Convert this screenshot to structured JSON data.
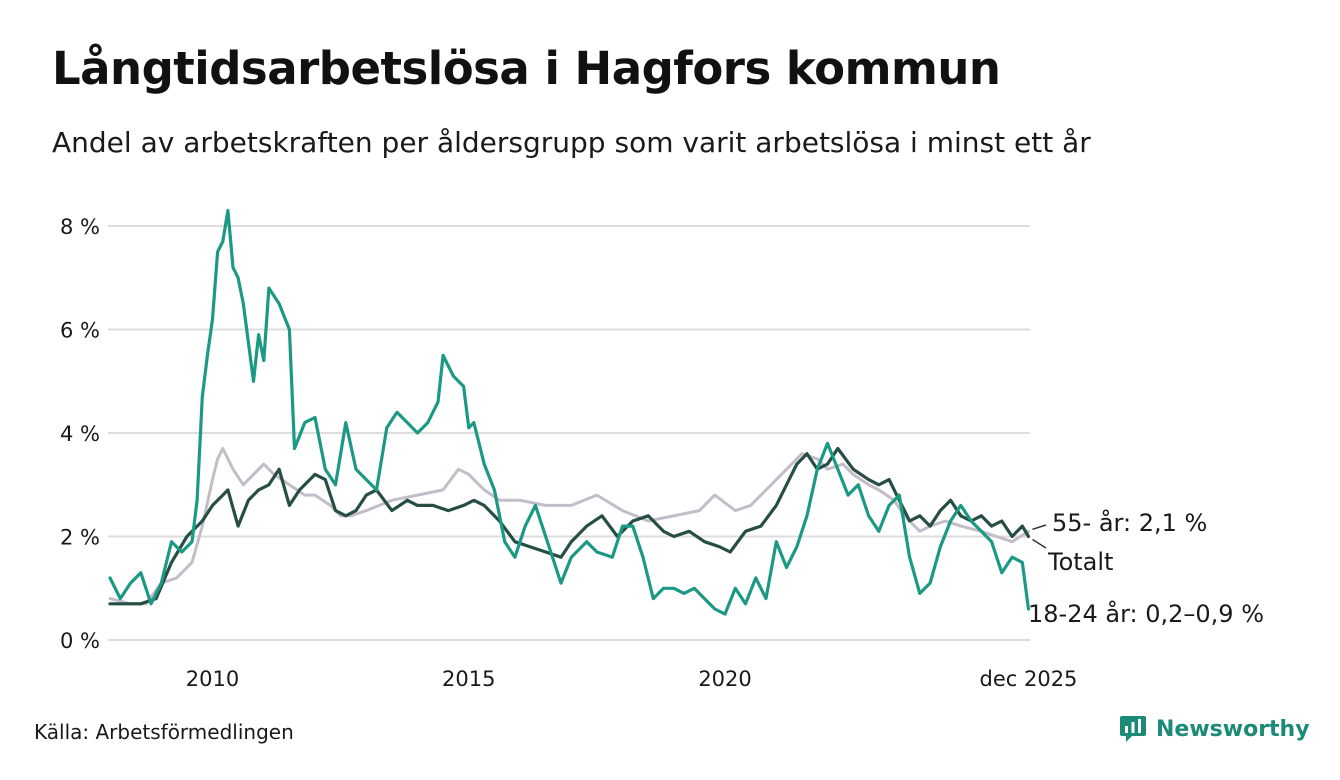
{
  "header": {
    "title": "Långtidsarbetslösa i Hagfors kommun",
    "subtitle": "Andel av arbetskraften per åldersgrupp som varit arbetslösa i minst ett år"
  },
  "footer": {
    "source": "Källa: Arbetsförmedlingen",
    "brand": "Newsworthy"
  },
  "colors": {
    "young": "#1b9985",
    "total": "#264e45",
    "older": "#c3bdc9",
    "grid": "#dddddd",
    "brand": "#1b8a77"
  },
  "chart_data": {
    "type": "line",
    "xlim": [
      2008.0,
      2025.95
    ],
    "ylim": [
      0,
      8.5
    ],
    "yticks": [
      0,
      2,
      4,
      6,
      8
    ],
    "ytick_labels": [
      "0 %",
      "2 %",
      "4 %",
      "6 %",
      "8 %"
    ],
    "xticks": [
      2010,
      2015,
      2020,
      2025.92
    ],
    "xtick_labels": [
      "2010",
      "2015",
      "2020",
      "dec 2025"
    ],
    "grid": true,
    "series": [
      {
        "name": "55- år",
        "key": "older",
        "label": "55- år: 2,1 %",
        "x": [
          2008.0,
          2008.4,
          2008.7,
          2009.0,
          2009.3,
          2009.6,
          2009.8,
          2010.0,
          2010.1,
          2010.2,
          2010.4,
          2010.6,
          2010.8,
          2011.0,
          2011.2,
          2011.5,
          2011.8,
          2012.0,
          2012.3,
          2012.5,
          2012.7,
          2013.0,
          2013.5,
          2014.0,
          2014.5,
          2014.8,
          2015.0,
          2015.3,
          2015.6,
          2016.0,
          2016.5,
          2017.0,
          2017.5,
          2018.0,
          2018.5,
          2019.0,
          2019.5,
          2019.8,
          2020.2,
          2020.5,
          2021.0,
          2021.3,
          2021.5,
          2021.8,
          2022.0,
          2022.3,
          2022.5,
          2022.8,
          2023.0,
          2023.3,
          2023.5,
          2023.8,
          2024.0,
          2024.3,
          2024.6,
          2025.0,
          2025.3,
          2025.6,
          2025.92
        ],
        "values": [
          0.8,
          0.7,
          0.7,
          1.1,
          1.2,
          1.5,
          2.2,
          3.1,
          3.5,
          3.7,
          3.3,
          3.0,
          3.2,
          3.4,
          3.2,
          3.0,
          2.8,
          2.8,
          2.6,
          2.4,
          2.4,
          2.5,
          2.7,
          2.8,
          2.9,
          3.3,
          3.2,
          2.9,
          2.7,
          2.7,
          2.6,
          2.6,
          2.8,
          2.5,
          2.3,
          2.4,
          2.5,
          2.8,
          2.5,
          2.6,
          3.1,
          3.4,
          3.6,
          3.5,
          3.3,
          3.4,
          3.2,
          3.0,
          2.9,
          2.7,
          2.4,
          2.1,
          2.2,
          2.3,
          2.2,
          2.1,
          2.0,
          1.9,
          2.1
        ]
      },
      {
        "name": "Totalt",
        "key": "total",
        "label": "Totalt",
        "x": [
          2008.0,
          2008.3,
          2008.6,
          2008.9,
          2009.2,
          2009.5,
          2009.8,
          2010.0,
          2010.2,
          2010.3,
          2010.5,
          2010.7,
          2010.9,
          2011.1,
          2011.3,
          2011.5,
          2011.7,
          2012.0,
          2012.2,
          2012.4,
          2012.6,
          2012.8,
          2013.0,
          2013.2,
          2013.5,
          2013.8,
          2014.0,
          2014.3,
          2014.6,
          2014.9,
          2015.1,
          2015.3,
          2015.6,
          2015.9,
          2016.2,
          2016.5,
          2016.8,
          2017.0,
          2017.3,
          2017.6,
          2017.9,
          2018.2,
          2018.5,
          2018.8,
          2019.0,
          2019.3,
          2019.6,
          2019.9,
          2020.1,
          2020.4,
          2020.7,
          2021.0,
          2021.2,
          2021.4,
          2021.6,
          2021.8,
          2022.0,
          2022.2,
          2022.5,
          2022.8,
          2023.0,
          2023.2,
          2023.4,
          2023.6,
          2023.8,
          2024.0,
          2024.2,
          2024.4,
          2024.6,
          2024.8,
          2025.0,
          2025.2,
          2025.4,
          2025.6,
          2025.8,
          2025.92
        ],
        "values": [
          0.7,
          0.7,
          0.7,
          0.8,
          1.5,
          2.0,
          2.3,
          2.6,
          2.8,
          2.9,
          2.2,
          2.7,
          2.9,
          3.0,
          3.3,
          2.6,
          2.9,
          3.2,
          3.1,
          2.5,
          2.4,
          2.5,
          2.8,
          2.9,
          2.5,
          2.7,
          2.6,
          2.6,
          2.5,
          2.6,
          2.7,
          2.6,
          2.3,
          1.9,
          1.8,
          1.7,
          1.6,
          1.9,
          2.2,
          2.4,
          2.0,
          2.3,
          2.4,
          2.1,
          2.0,
          2.1,
          1.9,
          1.8,
          1.7,
          2.1,
          2.2,
          2.6,
          3.0,
          3.4,
          3.6,
          3.3,
          3.4,
          3.7,
          3.3,
          3.1,
          3.0,
          3.1,
          2.7,
          2.3,
          2.4,
          2.2,
          2.5,
          2.7,
          2.4,
          2.3,
          2.4,
          2.2,
          2.3,
          2.0,
          2.2,
          2.0
        ]
      },
      {
        "name": "18-24 år",
        "key": "young",
        "label": "18-24 år: 0,2–0,9 %",
        "x": [
          2008.0,
          2008.2,
          2008.4,
          2008.6,
          2008.8,
          2009.0,
          2009.2,
          2009.4,
          2009.6,
          2009.7,
          2009.8,
          2009.9,
          2010.0,
          2010.1,
          2010.2,
          2010.3,
          2010.4,
          2010.5,
          2010.6,
          2010.8,
          2010.9,
          2011.0,
          2011.1,
          2011.3,
          2011.5,
          2011.6,
          2011.8,
          2012.0,
          2012.2,
          2012.4,
          2012.6,
          2012.8,
          2013.0,
          2013.2,
          2013.4,
          2013.6,
          2013.8,
          2014.0,
          2014.2,
          2014.4,
          2014.5,
          2014.7,
          2014.9,
          2015.0,
          2015.1,
          2015.3,
          2015.5,
          2015.7,
          2015.9,
          2016.1,
          2016.3,
          2016.6,
          2016.8,
          2017.0,
          2017.3,
          2017.5,
          2017.8,
          2018.0,
          2018.2,
          2018.4,
          2018.6,
          2018.8,
          2019.0,
          2019.2,
          2019.4,
          2019.6,
          2019.8,
          2020.0,
          2020.2,
          2020.4,
          2020.6,
          2020.8,
          2021.0,
          2021.2,
          2021.4,
          2021.6,
          2021.8,
          2022.0,
          2022.2,
          2022.4,
          2022.6,
          2022.8,
          2023.0,
          2023.2,
          2023.4,
          2023.6,
          2023.8,
          2024.0,
          2024.2,
          2024.4,
          2024.6,
          2024.8,
          2025.0,
          2025.2,
          2025.4,
          2025.6,
          2025.8,
          2025.92
        ],
        "values": [
          1.2,
          0.8,
          1.1,
          1.3,
          0.7,
          1.1,
          1.9,
          1.7,
          1.9,
          2.7,
          4.7,
          5.5,
          6.2,
          7.5,
          7.7,
          8.3,
          7.2,
          7.0,
          6.5,
          5.0,
          5.9,
          5.4,
          6.8,
          6.5,
          6.0,
          3.7,
          4.2,
          4.3,
          3.3,
          3.0,
          4.2,
          3.3,
          3.1,
          2.9,
          4.1,
          4.4,
          4.2,
          4.0,
          4.2,
          4.6,
          5.5,
          5.1,
          4.9,
          4.1,
          4.2,
          3.4,
          2.9,
          1.9,
          1.6,
          2.2,
          2.6,
          1.7,
          1.1,
          1.6,
          1.9,
          1.7,
          1.6,
          2.2,
          2.2,
          1.6,
          0.8,
          1.0,
          1.0,
          0.9,
          1.0,
          0.8,
          0.6,
          0.5,
          1.0,
          0.7,
          1.2,
          0.8,
          1.9,
          1.4,
          1.8,
          2.4,
          3.3,
          3.8,
          3.3,
          2.8,
          3.0,
          2.4,
          2.1,
          2.6,
          2.8,
          1.6,
          0.9,
          1.1,
          1.8,
          2.3,
          2.6,
          2.3,
          2.1,
          1.9,
          1.3,
          1.6,
          1.5,
          0.6
        ]
      }
    ]
  }
}
